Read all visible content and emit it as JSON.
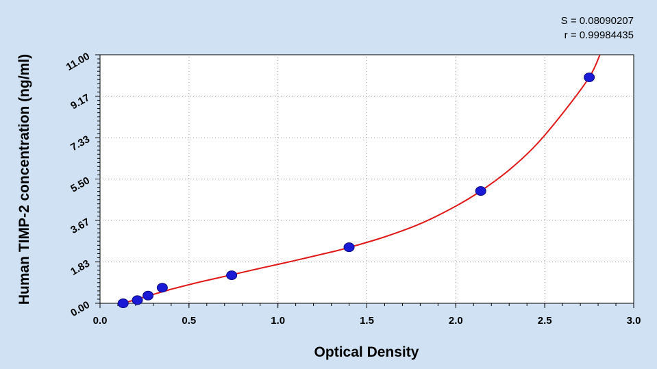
{
  "chart_data": {
    "type": "scatter",
    "title": "",
    "xlabel": "Optical Density",
    "ylabel": "Human TIMP-2 concentration (ng/ml)",
    "xlim": [
      0.0,
      3.0
    ],
    "ylim": [
      0.0,
      11.0
    ],
    "x_ticks": [
      "0.0",
      "0.5",
      "1.0",
      "1.5",
      "2.0",
      "2.5",
      "3.0"
    ],
    "y_ticks": [
      "0.00",
      "1.83",
      "3.67",
      "5.50",
      "7.33",
      "9.17",
      "11.00"
    ],
    "grid": true,
    "legend": "none",
    "stats": [
      "S = 0.08090207",
      "r = 0.99984435"
    ],
    "points": [
      {
        "x": 0.13,
        "y": 0.0
      },
      {
        "x": 0.21,
        "y": 0.14
      },
      {
        "x": 0.27,
        "y": 0.34
      },
      {
        "x": 0.35,
        "y": 0.69
      },
      {
        "x": 0.74,
        "y": 1.24
      },
      {
        "x": 1.4,
        "y": 2.48
      },
      {
        "x": 2.14,
        "y": 4.97
      },
      {
        "x": 2.75,
        "y": 10.0
      }
    ],
    "fit_curve": [
      {
        "x": 0.13,
        "y": 0.0
      },
      {
        "x": 0.25,
        "y": 0.28
      },
      {
        "x": 0.4,
        "y": 0.62
      },
      {
        "x": 0.55,
        "y": 0.92
      },
      {
        "x": 0.74,
        "y": 1.26
      },
      {
        "x": 0.9,
        "y": 1.55
      },
      {
        "x": 1.1,
        "y": 1.9
      },
      {
        "x": 1.3,
        "y": 2.27
      },
      {
        "x": 1.4,
        "y": 2.47
      },
      {
        "x": 1.6,
        "y": 2.94
      },
      {
        "x": 1.8,
        "y": 3.52
      },
      {
        "x": 2.0,
        "y": 4.3
      },
      {
        "x": 2.14,
        "y": 4.97
      },
      {
        "x": 2.3,
        "y": 5.9
      },
      {
        "x": 2.45,
        "y": 7.0
      },
      {
        "x": 2.6,
        "y": 8.4
      },
      {
        "x": 2.75,
        "y": 10.0
      },
      {
        "x": 2.81,
        "y": 11.0
      }
    ],
    "colors": {
      "background": "#cfe1f2",
      "plot_area": "#ffffff",
      "grid": "#9a9a9a",
      "curve": "#e01818",
      "points": "#1a1ad6"
    }
  }
}
